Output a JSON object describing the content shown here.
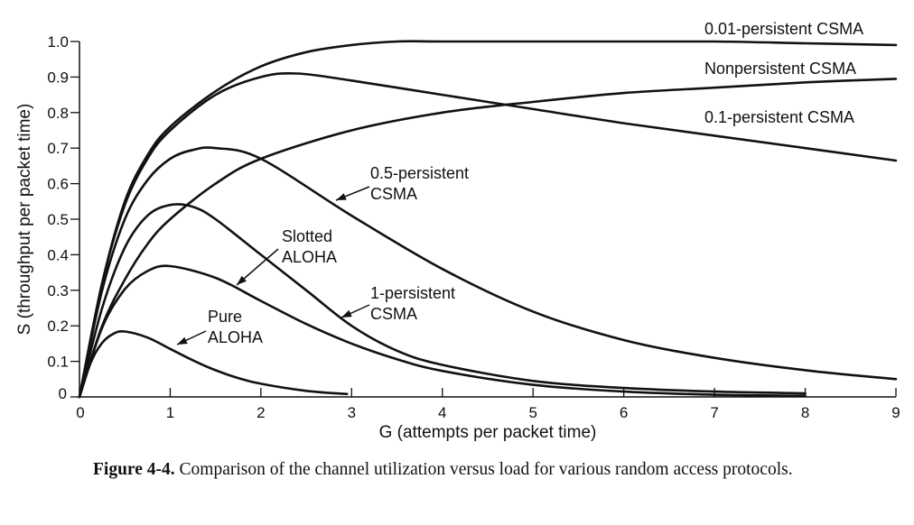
{
  "chart_data": {
    "type": "line",
    "xlabel": "G (attempts per packet time)",
    "ylabel": "S (throughput per packet time)",
    "xlim": [
      0,
      9
    ],
    "ylim": [
      0,
      1.0
    ],
    "x_ticks": [
      "0",
      "1",
      "2",
      "3",
      "4",
      "5",
      "6",
      "7",
      "8",
      "9"
    ],
    "y_ticks": [
      "0",
      "0.1",
      "0.2",
      "0.3",
      "0.4",
      "0.5",
      "0.6",
      "0.7",
      "0.8",
      "0.9",
      "1.0"
    ],
    "grid": false,
    "series": [
      {
        "name": "0.01-persistent CSMA",
        "label_lines": [
          "0.01-persistent CSMA"
        ],
        "x": [
          0,
          0.25,
          0.5,
          0.75,
          1,
          1.5,
          2,
          2.5,
          3,
          3.5,
          4,
          5,
          6,
          7,
          8,
          9
        ],
        "y": [
          0,
          0.32,
          0.55,
          0.68,
          0.76,
          0.86,
          0.93,
          0.97,
          0.99,
          1.0,
          1.0,
          1.0,
          1.0,
          1.0,
          0.995,
          0.99
        ]
      },
      {
        "name": "Nonpersistent CSMA",
        "label_lines": [
          "Nonpersistent CSMA"
        ],
        "x": [
          0,
          0.25,
          0.5,
          0.75,
          1,
          1.5,
          2,
          3,
          4,
          5,
          6,
          7,
          8,
          9
        ],
        "y": [
          0,
          0.2,
          0.33,
          0.43,
          0.5,
          0.6,
          0.67,
          0.75,
          0.8,
          0.83,
          0.855,
          0.87,
          0.885,
          0.895
        ]
      },
      {
        "name": "0.1-persistent CSMA",
        "label_lines": [
          "0.1-persistent CSMA"
        ],
        "x": [
          0,
          0.25,
          0.5,
          0.75,
          1,
          1.5,
          2,
          2.4,
          3,
          4,
          5,
          6,
          7,
          8,
          9
        ],
        "y": [
          0,
          0.32,
          0.54,
          0.67,
          0.75,
          0.85,
          0.9,
          0.91,
          0.89,
          0.85,
          0.81,
          0.77,
          0.735,
          0.7,
          0.665
        ]
      },
      {
        "name": "0.5-persistent CSMA",
        "label_lines": [
          "0.5-persistent",
          "CSMA"
        ],
        "x": [
          0,
          0.25,
          0.5,
          0.75,
          1,
          1.25,
          1.5,
          2,
          3,
          4,
          5,
          6,
          7,
          8,
          9
        ],
        "y": [
          0,
          0.3,
          0.5,
          0.61,
          0.67,
          0.695,
          0.7,
          0.67,
          0.51,
          0.36,
          0.24,
          0.16,
          0.11,
          0.075,
          0.05
        ]
      },
      {
        "name": "1-persistent CSMA",
        "label_lines": [
          "1-persistent",
          "CSMA"
        ],
        "x": [
          0,
          0.25,
          0.5,
          0.75,
          1,
          1.25,
          1.5,
          2,
          2.5,
          3,
          3.5,
          4,
          5,
          6,
          7,
          8
        ],
        "y": [
          0,
          0.25,
          0.42,
          0.51,
          0.54,
          0.535,
          0.5,
          0.4,
          0.3,
          0.2,
          0.13,
          0.09,
          0.045,
          0.025,
          0.015,
          0.01
        ]
      },
      {
        "name": "Slotted ALOHA",
        "label_lines": [
          "Slotted",
          "ALOHA"
        ],
        "x": [
          0,
          0.25,
          0.5,
          0.75,
          1,
          1.5,
          2,
          2.5,
          3,
          3.5,
          4,
          5,
          6,
          7,
          8
        ],
        "y": [
          0,
          0.195,
          0.303,
          0.354,
          0.368,
          0.335,
          0.27,
          0.205,
          0.15,
          0.106,
          0.073,
          0.034,
          0.015,
          0.006,
          0.003
        ]
      },
      {
        "name": "Pure ALOHA",
        "label_lines": [
          "Pure",
          "ALOHA"
        ],
        "x": [
          0,
          0.125,
          0.25,
          0.375,
          0.5,
          0.75,
          1,
          1.25,
          1.5,
          1.75,
          2,
          2.5,
          2.95
        ],
        "y": [
          0,
          0.097,
          0.152,
          0.178,
          0.184,
          0.167,
          0.135,
          0.103,
          0.075,
          0.053,
          0.037,
          0.017,
          0.008
        ]
      }
    ]
  },
  "caption": {
    "label": "Figure 4-4.",
    "text": "Comparison of the channel utilization versus load for various random access protocols."
  }
}
